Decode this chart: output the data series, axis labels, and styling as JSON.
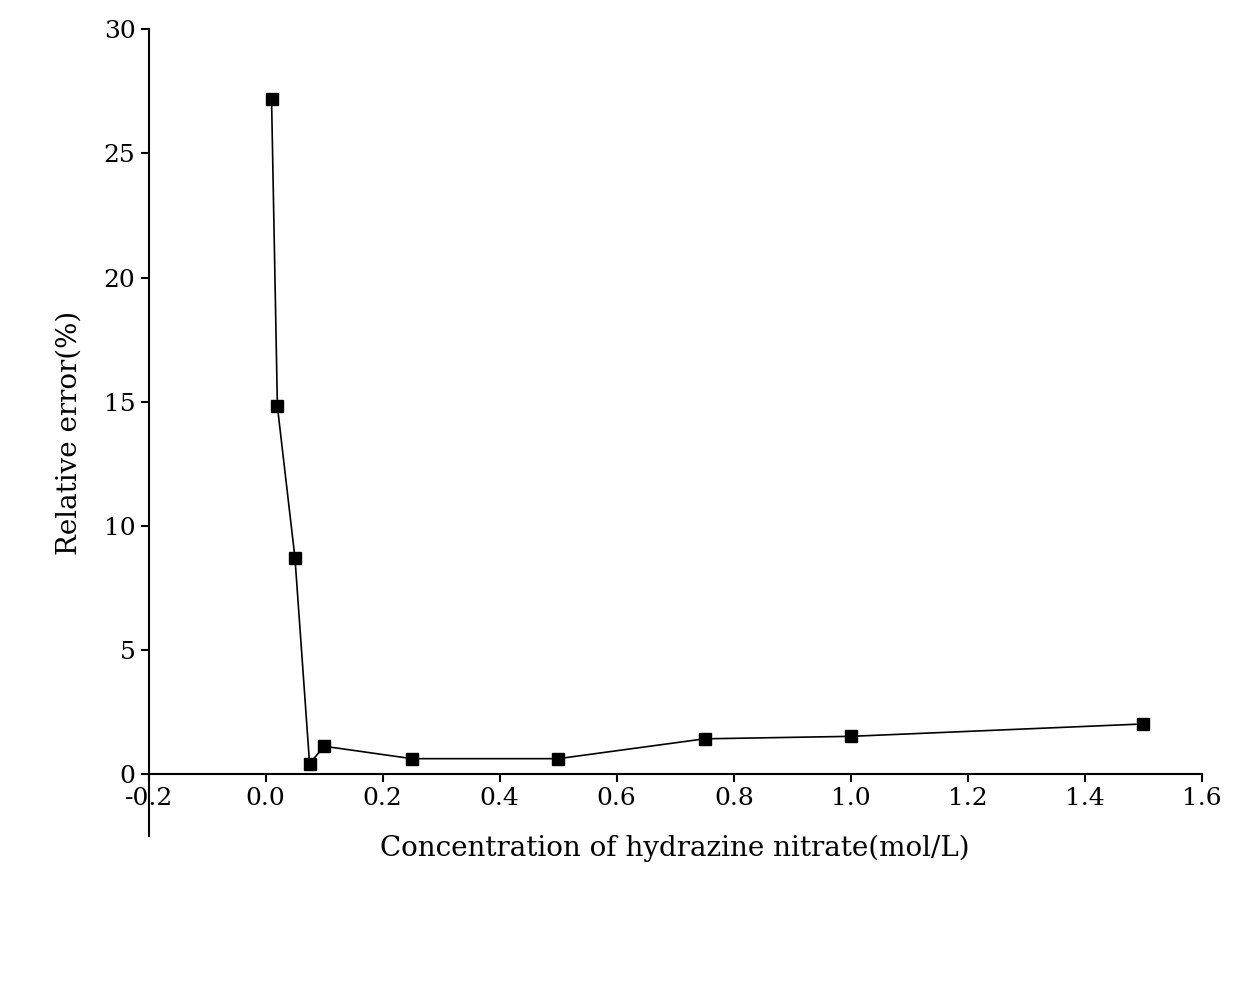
{
  "x": [
    0.01,
    0.02,
    0.05,
    0.075,
    0.1,
    0.25,
    0.5,
    0.75,
    1.0,
    1.5
  ],
  "y": [
    27.2,
    14.8,
    8.7,
    0.4,
    1.1,
    0.6,
    0.6,
    1.4,
    1.5,
    2.0
  ],
  "xlabel": "Concentration of hydrazine nitrate(mol/L)",
  "ylabel": "Relative error(%)",
  "xlim": [
    -0.2,
    1.6
  ],
  "ylim": [
    -2.5,
    30
  ],
  "xticks": [
    -0.2,
    0.0,
    0.2,
    0.4,
    0.6,
    0.8,
    1.0,
    1.2,
    1.4,
    1.6
  ],
  "xtick_labels": [
    "-0.2",
    "0.0",
    "0.2",
    "0.4",
    "0.6",
    "0.8",
    "1.0",
    "1.2",
    "1.4",
    "1.6"
  ],
  "yticks": [
    0,
    5,
    10,
    15,
    20,
    25,
    30
  ],
  "ytick_labels": [
    "0",
    "5",
    "10",
    "15",
    "20",
    "25",
    "30"
  ],
  "marker": "s",
  "marker_color": "black",
  "marker_size": 9,
  "line_color": "black",
  "line_style": "-",
  "line_width": 1.2,
  "xlabel_fontsize": 20,
  "ylabel_fontsize": 20,
  "tick_fontsize": 18,
  "font_family": "DejaVu Serif"
}
